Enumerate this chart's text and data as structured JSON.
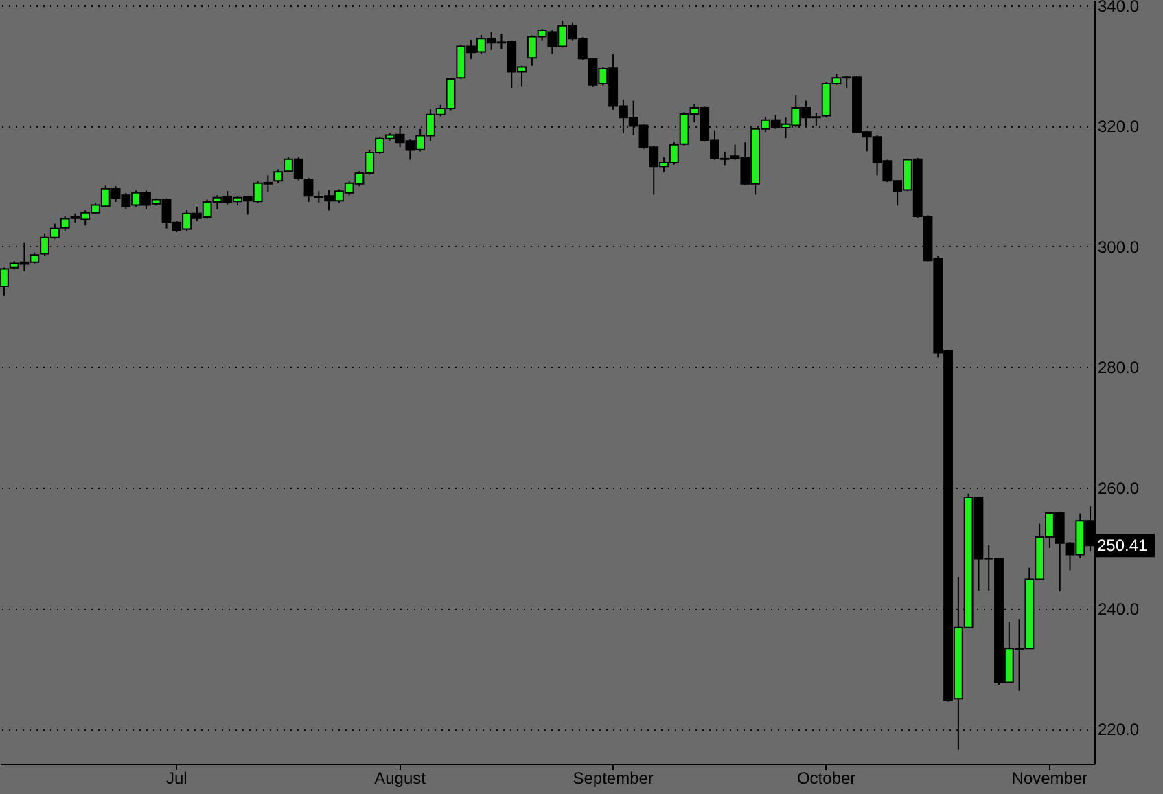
{
  "chart_data": {
    "type": "candlestick",
    "categories": [
      null,
      null,
      null,
      null,
      null,
      null,
      null,
      null,
      null,
      null,
      null,
      null,
      null,
      null,
      null,
      null,
      null,
      "Jul",
      null,
      null,
      null,
      null,
      null,
      null,
      null,
      null,
      null,
      null,
      null,
      null,
      null,
      null,
      null,
      null,
      null,
      null,
      null,
      null,
      null,
      "August",
      null,
      null,
      null,
      null,
      null,
      null,
      null,
      null,
      null,
      null,
      null,
      null,
      null,
      null,
      null,
      null,
      null,
      null,
      null,
      null,
      "September",
      null,
      null,
      null,
      null,
      null,
      null,
      null,
      null,
      null,
      null,
      null,
      null,
      null,
      null,
      null,
      null,
      null,
      null,
      null,
      null,
      "October",
      null,
      null,
      null,
      null,
      null,
      null,
      null,
      null,
      null,
      null,
      null,
      null,
      null,
      null,
      null,
      null,
      null,
      null,
      null,
      null,
      null,
      "November",
      null,
      null,
      null,
      null
    ],
    "ohlc": [
      [
        293.4,
        296.5,
        291.8,
        296.3
      ],
      [
        296.5,
        297.6,
        296.2,
        297.2
      ],
      [
        297.4,
        300.6,
        295.9,
        297.1
      ],
      [
        297.4,
        299.0,
        297.2,
        298.6
      ],
      [
        298.8,
        302.2,
        298.5,
        301.5
      ],
      [
        301.5,
        303.8,
        301.3,
        303.0
      ],
      [
        303.1,
        305.0,
        302.5,
        304.6
      ],
      [
        304.7,
        305.5,
        304.0,
        304.9
      ],
      [
        304.5,
        306.0,
        303.5,
        305.6
      ],
      [
        305.6,
        307.2,
        305.4,
        306.9
      ],
      [
        306.7,
        310.1,
        306.5,
        309.6
      ],
      [
        309.6,
        310.0,
        307.4,
        308.0
      ],
      [
        308.5,
        308.9,
        306.2,
        306.6
      ],
      [
        306.9,
        309.3,
        306.6,
        308.9
      ],
      [
        308.9,
        309.3,
        306.2,
        306.9
      ],
      [
        307.1,
        308.0,
        306.8,
        307.8
      ],
      [
        307.8,
        308.0,
        303.0,
        304.0
      ],
      [
        304.0,
        304.2,
        302.4,
        302.7
      ],
      [
        302.9,
        306.0,
        302.6,
        305.5
      ],
      [
        305.5,
        306.6,
        304.2,
        304.7
      ],
      [
        304.9,
        307.8,
        304.6,
        307.4
      ],
      [
        307.4,
        308.5,
        306.2,
        308.1
      ],
      [
        308.3,
        309.2,
        307.0,
        307.3
      ],
      [
        307.5,
        308.3,
        306.8,
        308.1
      ],
      [
        308.3,
        308.4,
        305.3,
        307.6
      ],
      [
        307.5,
        310.8,
        307.2,
        310.5
      ],
      [
        310.4,
        311.8,
        309.0,
        310.6
      ],
      [
        310.9,
        312.8,
        310.5,
        312.4
      ],
      [
        312.5,
        314.8,
        312.3,
        314.5
      ],
      [
        314.5,
        314.8,
        311.0,
        311.3
      ],
      [
        311.1,
        311.4,
        307.4,
        308.4
      ],
      [
        308.3,
        309.2,
        307.3,
        308.2
      ],
      [
        308.4,
        309.4,
        306.0,
        307.6
      ],
      [
        307.6,
        309.5,
        307.3,
        309.2
      ],
      [
        308.9,
        310.8,
        308.5,
        310.5
      ],
      [
        310.4,
        312.5,
        310.0,
        312.2
      ],
      [
        312.2,
        316.0,
        311.9,
        315.6
      ],
      [
        315.6,
        318.2,
        315.4,
        317.9
      ],
      [
        317.9,
        318.8,
        317.6,
        318.5
      ],
      [
        318.6,
        319.9,
        316.5,
        317.3
      ],
      [
        317.5,
        317.8,
        314.4,
        316.0
      ],
      [
        316.1,
        319.5,
        315.8,
        318.4
      ],
      [
        318.4,
        322.8,
        317.5,
        321.9
      ],
      [
        321.9,
        323.5,
        321.6,
        322.9
      ],
      [
        322.9,
        328.0,
        322.6,
        327.8
      ],
      [
        328.0,
        333.5,
        327.8,
        333.2
      ],
      [
        333.2,
        334.3,
        331.1,
        332.2
      ],
      [
        332.3,
        335.1,
        332.0,
        334.5
      ],
      [
        334.5,
        335.6,
        332.6,
        333.8
      ],
      [
        333.9,
        335.3,
        332.8,
        333.8
      ],
      [
        334.0,
        334.2,
        326.3,
        329.0
      ],
      [
        329.0,
        330.0,
        326.6,
        329.8
      ],
      [
        331.3,
        335.0,
        330.0,
        334.8
      ],
      [
        334.8,
        336.1,
        334.2,
        335.9
      ],
      [
        335.6,
        335.9,
        332.0,
        333.2
      ],
      [
        333.2,
        337.5,
        333.0,
        336.6
      ],
      [
        336.6,
        337.2,
        334.2,
        334.5
      ],
      [
        334.5,
        334.7,
        331.0,
        331.2
      ],
      [
        331.1,
        331.3,
        326.5,
        326.8
      ],
      [
        327.0,
        329.8,
        326.7,
        329.5
      ],
      [
        329.6,
        331.9,
        322.7,
        323.3
      ],
      [
        323.3,
        324.4,
        318.8,
        321.4
      ],
      [
        321.4,
        324.2,
        318.5,
        320.0
      ],
      [
        320.1,
        320.3,
        316.2,
        316.4
      ],
      [
        316.5,
        316.7,
        308.6,
        313.3
      ],
      [
        313.3,
        314.8,
        312.4,
        313.9
      ],
      [
        313.9,
        317.3,
        313.6,
        316.9
      ],
      [
        317.0,
        322.3,
        316.7,
        322.0
      ],
      [
        322.0,
        323.6,
        320.6,
        323.0
      ],
      [
        323.0,
        323.2,
        317.4,
        317.6
      ],
      [
        317.6,
        319.3,
        314.4,
        314.6
      ],
      [
        314.6,
        315.7,
        313.5,
        314.5
      ],
      [
        315.0,
        316.9,
        314.4,
        314.6
      ],
      [
        314.8,
        317.3,
        310.2,
        310.4
      ],
      [
        310.4,
        319.7,
        308.6,
        319.5
      ],
      [
        319.5,
        321.5,
        319.0,
        321.0
      ],
      [
        321.0,
        321.8,
        319.5,
        319.7
      ],
      [
        319.7,
        321.4,
        318.0,
        320.3
      ],
      [
        320.1,
        325.1,
        319.8,
        323.0
      ],
      [
        323.0,
        324.2,
        320.0,
        321.4
      ],
      [
        321.4,
        322.2,
        320.0,
        321.5
      ],
      [
        321.7,
        327.3,
        321.4,
        327.0
      ],
      [
        327.0,
        328.6,
        326.8,
        328.0
      ],
      [
        328.0,
        328.3,
        326.3,
        328.1
      ],
      [
        328.1,
        328.3,
        318.8,
        319.0
      ],
      [
        319.0,
        319.2,
        315.8,
        318.2
      ],
      [
        318.2,
        318.5,
        311.8,
        313.9
      ],
      [
        314.2,
        314.4,
        310.7,
        310.9
      ],
      [
        310.9,
        311.0,
        306.8,
        309.2
      ],
      [
        309.4,
        314.6,
        309.2,
        314.4
      ],
      [
        314.5,
        314.7,
        304.8,
        305.0
      ],
      [
        305.0,
        305.2,
        297.5,
        297.7
      ],
      [
        298.0,
        298.5,
        281.6,
        282.4
      ],
      [
        282.7,
        282.7,
        224.5,
        224.8
      ],
      [
        225.0,
        245.2,
        216.5,
        236.8
      ],
      [
        236.8,
        259.0,
        236.8,
        258.4
      ],
      [
        258.4,
        258.4,
        242.9,
        248.2
      ],
      [
        248.2,
        250.5,
        242.9,
        248.2
      ],
      [
        248.2,
        248.2,
        227.3,
        227.7
      ],
      [
        227.7,
        237.8,
        227.7,
        233.3
      ],
      [
        233.2,
        238.2,
        226.3,
        233.3
      ],
      [
        233.3,
        246.7,
        233.3,
        244.8
      ],
      [
        244.8,
        254.0,
        244.8,
        251.8
      ],
      [
        251.8,
        256.0,
        250.0,
        255.8
      ],
      [
        255.8,
        255.8,
        242.8,
        250.8
      ],
      [
        250.8,
        251.0,
        246.3,
        248.9
      ],
      [
        248.9,
        255.7,
        248.3,
        254.5
      ],
      [
        254.5,
        256.9,
        249.5,
        250.41
      ]
    ],
    "ylim": [
      214.2,
      340.9
    ],
    "yticks": [
      {
        "value": 220,
        "label": "220.0"
      },
      {
        "value": 240,
        "label": "240.0"
      },
      {
        "value": 260,
        "label": "260.0"
      },
      {
        "value": 280,
        "label": "280.0"
      },
      {
        "value": 300,
        "label": "300.0"
      },
      {
        "value": 320,
        "label": "320.0"
      },
      {
        "value": 340,
        "label": "340.0"
      }
    ],
    "grid": "y",
    "annotations": [
      {
        "text": "250.41",
        "y": 250.41
      }
    ]
  }
}
